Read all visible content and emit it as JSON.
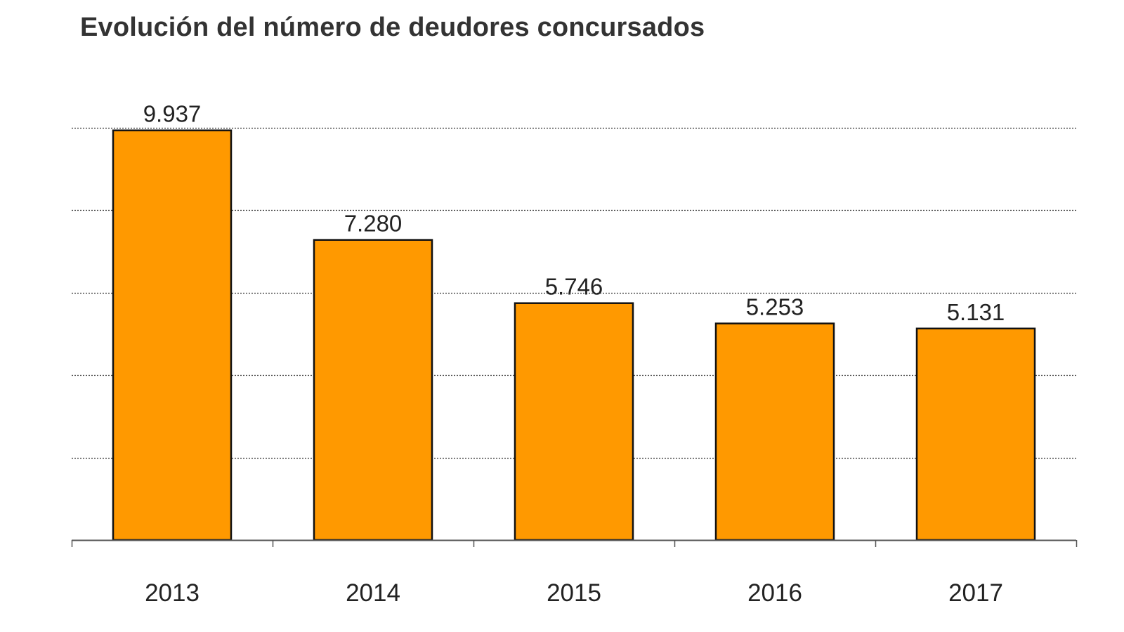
{
  "chart_data": {
    "type": "bar",
    "title": "Evolución del número de deudores concursados",
    "categories": [
      "2013",
      "2014",
      "2015",
      "2016",
      "2017"
    ],
    "values": [
      9937,
      7280,
      5746,
      5253,
      5131
    ],
    "value_labels": [
      "9.937",
      "7.280",
      "5.746",
      "5.253",
      "5.131"
    ],
    "xlabel": "",
    "ylabel": "",
    "ylim": [
      0,
      10000
    ],
    "gridlines": true,
    "y_tick_labels_shown": false,
    "legend": "none",
    "colors": {
      "bar_fill": "#FF9900",
      "bar_stroke": "#111111",
      "gridline": "#333333",
      "axis": "#555555",
      "text": "#222222"
    }
  }
}
